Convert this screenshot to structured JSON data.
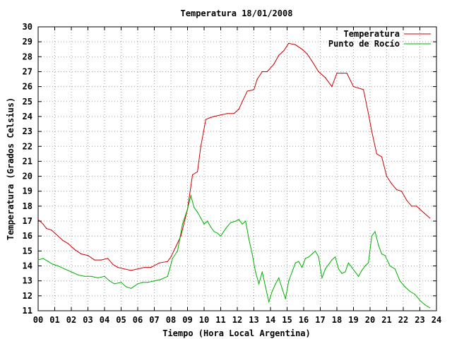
{
  "chart_data": {
    "type": "line",
    "title": "Temperatura 18/01/2008",
    "xlabel": "Tiempo (Hora Local Argentina)",
    "ylabel": "Temperatura (Grados Celsius)",
    "xlim": [
      0,
      24
    ],
    "ylim": [
      11,
      30
    ],
    "x_ticks": [
      "00",
      "01",
      "02",
      "03",
      "04",
      "05",
      "06",
      "07",
      "08",
      "09",
      "10",
      "11",
      "12",
      "13",
      "14",
      "15",
      "16",
      "17",
      "18",
      "19",
      "20",
      "21",
      "22",
      "23",
      "24"
    ],
    "y_ticks": [
      "11",
      "12",
      "13",
      "14",
      "15",
      "16",
      "17",
      "18",
      "19",
      "20",
      "21",
      "22",
      "23",
      "24",
      "25",
      "26",
      "27",
      "28",
      "29",
      "30"
    ],
    "grid": true,
    "legend": "top-right",
    "series": [
      {
        "name": "Temperatura",
        "color": "#cc0000",
        "x": [
          0.0,
          0.3,
          0.5,
          0.8,
          1.2,
          1.5,
          1.8,
          2.2,
          2.6,
          3.0,
          3.4,
          3.8,
          4.2,
          4.5,
          4.8,
          5.2,
          5.6,
          6.0,
          6.4,
          6.8,
          7.3,
          7.8,
          8.0,
          8.3,
          8.6,
          9.0,
          9.3,
          9.6,
          9.8,
          10.1,
          10.3,
          10.6,
          11.0,
          11.4,
          11.8,
          12.1,
          12.3,
          12.6,
          13.0,
          13.2,
          13.5,
          13.8,
          14.2,
          14.5,
          14.8,
          15.1,
          15.5,
          15.9,
          16.2,
          16.5,
          16.9,
          17.3,
          17.7,
          18.0,
          18.3,
          18.6,
          19.0,
          19.3,
          19.6,
          19.9,
          20.1,
          20.4,
          20.7,
          21.0,
          21.3,
          21.6,
          21.9,
          22.2,
          22.5,
          22.8,
          23.0,
          23.3,
          23.6
        ],
        "y": [
          17.1,
          16.8,
          16.5,
          16.4,
          16.0,
          15.7,
          15.5,
          15.1,
          14.8,
          14.7,
          14.4,
          14.4,
          14.5,
          14.1,
          13.9,
          13.8,
          13.7,
          13.8,
          13.9,
          13.9,
          14.2,
          14.3,
          14.6,
          15.3,
          16.0,
          17.8,
          20.1,
          20.3,
          22.0,
          23.8,
          23.9,
          24.0,
          24.1,
          24.2,
          24.2,
          24.5,
          25.0,
          25.7,
          25.8,
          26.5,
          27.0,
          27.0,
          27.5,
          28.1,
          28.4,
          28.9,
          28.8,
          28.5,
          28.2,
          27.7,
          27.0,
          26.6,
          26.0,
          26.9,
          26.9,
          26.9,
          26.0,
          25.9,
          25.8,
          24.2,
          23.0,
          21.5,
          21.3,
          20.0,
          19.5,
          19.1,
          19.0,
          18.4,
          18.0,
          18.0,
          17.8,
          17.5,
          17.2
        ]
      },
      {
        "name": "Punto de Rocío",
        "color": "#00b000",
        "x": [
          0.0,
          0.3,
          0.6,
          0.9,
          1.2,
          1.6,
          2.0,
          2.4,
          2.8,
          3.2,
          3.6,
          4.0,
          4.3,
          4.6,
          5.0,
          5.3,
          5.6,
          6.0,
          6.3,
          6.6,
          7.0,
          7.4,
          7.8,
          8.1,
          8.4,
          8.7,
          9.0,
          9.2,
          9.4,
          9.6,
          9.8,
          10.0,
          10.2,
          10.4,
          10.6,
          10.8,
          11.0,
          11.3,
          11.6,
          11.9,
          12.1,
          12.3,
          12.5,
          12.7,
          12.9,
          13.1,
          13.3,
          13.5,
          13.7,
          13.9,
          14.1,
          14.3,
          14.5,
          14.7,
          14.9,
          15.1,
          15.3,
          15.5,
          15.7,
          15.9,
          16.1,
          16.3,
          16.5,
          16.7,
          16.9,
          17.1,
          17.3,
          17.5,
          17.7,
          17.9,
          18.1,
          18.3,
          18.5,
          18.7,
          18.9,
          19.1,
          19.3,
          19.5,
          19.7,
          19.9,
          20.1,
          20.3,
          20.5,
          20.7,
          20.9,
          21.2,
          21.5,
          21.8,
          22.1,
          22.4,
          22.7,
          23.0,
          23.3,
          23.6
        ],
        "y": [
          14.4,
          14.5,
          14.3,
          14.1,
          14.0,
          13.8,
          13.6,
          13.4,
          13.3,
          13.3,
          13.2,
          13.3,
          13.0,
          12.8,
          12.9,
          12.6,
          12.5,
          12.8,
          12.9,
          12.9,
          13.0,
          13.1,
          13.3,
          14.5,
          15.0,
          16.8,
          17.8,
          18.7,
          17.9,
          17.6,
          17.2,
          16.8,
          17.0,
          16.6,
          16.3,
          16.2,
          16.0,
          16.5,
          16.9,
          17.0,
          17.1,
          16.8,
          17.0,
          15.8,
          14.8,
          13.6,
          12.8,
          13.6,
          12.6,
          11.6,
          12.3,
          12.8,
          13.2,
          12.5,
          11.8,
          13.0,
          13.6,
          14.2,
          14.3,
          13.9,
          14.5,
          14.6,
          14.8,
          15.0,
          14.6,
          13.2,
          13.8,
          14.1,
          14.4,
          14.6,
          13.8,
          13.5,
          13.6,
          14.2,
          13.9,
          13.6,
          13.3,
          13.7,
          14.0,
          14.2,
          16.0,
          16.3,
          15.4,
          14.8,
          14.7,
          14.0,
          13.8,
          13.0,
          12.6,
          12.3,
          12.1,
          11.7,
          11.4,
          11.2
        ]
      }
    ]
  }
}
